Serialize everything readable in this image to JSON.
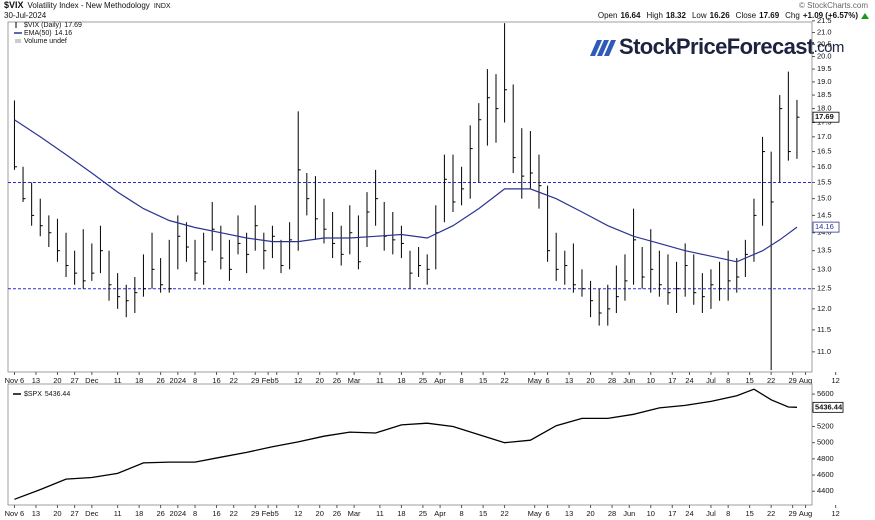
{
  "header": {
    "symbol": "$VIX",
    "name": "Volatility Index - New Methodology",
    "exchange": "INDX",
    "date": "30-Jul-2024",
    "copyright": "© StockCharts.com",
    "quote": [
      {
        "label": "Open",
        "value": 16.64
      },
      {
        "label": "High",
        "value": 18.32
      },
      {
        "label": "Low",
        "value": 16.26
      },
      {
        "label": "Close",
        "value": 17.69
      },
      {
        "label": "Chg",
        "value": "+1.09 (+6.57%)"
      }
    ]
  },
  "logo": {
    "text": "StockPriceForecast",
    "suffix": ".com"
  },
  "chart_data": [
    {
      "type": "hlc",
      "name": "$VIX (Daily)",
      "last": 17.69,
      "color": "#000000",
      "log": true,
      "ylim": [
        10.56,
        21.8
      ],
      "yticks": [
        {
          "value": 11,
          "label": "11.0"
        },
        {
          "value": 11.5,
          "label": "11.5"
        },
        {
          "value": 12,
          "label": "12.0"
        },
        {
          "value": 12.5,
          "label": "12.5"
        },
        {
          "value": 13,
          "label": "13.0"
        },
        {
          "value": 13.5,
          "label": "13.5"
        },
        {
          "value": 14,
          "label": "14.0"
        },
        {
          "value": 14.5,
          "label": "14.5"
        },
        {
          "value": 15,
          "label": "15.0"
        },
        {
          "value": 15.5,
          "label": "15.5"
        },
        {
          "value": 16,
          "label": "16.0"
        },
        {
          "value": 16.5,
          "label": "16.5"
        },
        {
          "value": 17,
          "label": "17.0"
        },
        {
          "value": 17.5,
          "label": "17.5"
        },
        {
          "value": 18,
          "label": "18.0"
        },
        {
          "value": 18.5,
          "label": "18.5"
        },
        {
          "value": 19,
          "label": "19.0"
        },
        {
          "value": 19.5,
          "label": "19.5"
        },
        {
          "value": 20,
          "label": "20.0"
        },
        {
          "value": 20.5,
          "label": "20.5"
        },
        {
          "value": 21,
          "label": "21.0"
        },
        {
          "value": 21.5,
          "label": "21.5"
        }
      ],
      "xlim": [
        -1.5,
        185.5
      ],
      "xticks": [
        {
          "value": 0,
          "label": "Nov 6"
        },
        {
          "value": 5,
          "label": "13"
        },
        {
          "value": 10,
          "label": "20"
        },
        {
          "value": 14,
          "label": "27"
        },
        {
          "value": 18,
          "label": "Dec"
        },
        {
          "value": 24,
          "label": "11"
        },
        {
          "value": 29,
          "label": "18"
        },
        {
          "value": 34,
          "label": "26"
        },
        {
          "value": 38,
          "label": "2024"
        },
        {
          "value": 42,
          "label": "8"
        },
        {
          "value": 47,
          "label": "16"
        },
        {
          "value": 51,
          "label": "22"
        },
        {
          "value": 56,
          "label": "29"
        },
        {
          "value": 59,
          "label": "Feb"
        },
        {
          "value": 61,
          "label": "5"
        },
        {
          "value": 66,
          "label": "12"
        },
        {
          "value": 71,
          "label": "20"
        },
        {
          "value": 75,
          "label": "26"
        },
        {
          "value": 79,
          "label": "Mar"
        },
        {
          "value": 85,
          "label": "11"
        },
        {
          "value": 90,
          "label": "18"
        },
        {
          "value": 95,
          "label": "25"
        },
        {
          "value": 99,
          "label": "Apr"
        },
        {
          "value": 104,
          "label": "8"
        },
        {
          "value": 109,
          "label": "15"
        },
        {
          "value": 114,
          "label": "22"
        },
        {
          "value": 121,
          "label": "May"
        },
        {
          "value": 124,
          "label": "6"
        },
        {
          "value": 129,
          "label": "13"
        },
        {
          "value": 134,
          "label": "20"
        },
        {
          "value": 139,
          "label": "28"
        },
        {
          "value": 143,
          "label": "Jun"
        },
        {
          "value": 148,
          "label": "10"
        },
        {
          "value": 153,
          "label": "17"
        },
        {
          "value": 157,
          "label": "24"
        },
        {
          "value": 162,
          "label": "Jul"
        },
        {
          "value": 166,
          "label": "8"
        },
        {
          "value": 171,
          "label": "15"
        },
        {
          "value": 176,
          "label": "22"
        },
        {
          "value": 181,
          "label": "29"
        },
        {
          "value": 184,
          "label": "Aug"
        },
        {
          "value": 191,
          "label": "12"
        }
      ],
      "x": [
        0,
        2,
        4,
        6,
        8,
        10,
        12,
        14,
        16,
        18,
        20,
        22,
        24,
        26,
        28,
        30,
        32,
        34,
        36,
        38,
        40,
        42,
        44,
        46,
        48,
        50,
        52,
        54,
        56,
        58,
        60,
        62,
        64,
        66,
        68,
        70,
        72,
        74,
        76,
        78,
        80,
        82,
        84,
        86,
        88,
        90,
        92,
        94,
        96,
        98,
        100,
        102,
        104,
        106,
        108,
        110,
        112,
        114,
        116,
        118,
        120,
        122,
        124,
        126,
        128,
        130,
        132,
        134,
        136,
        138,
        140,
        142,
        144,
        146,
        148,
        150,
        152,
        154,
        156,
        158,
        160,
        162,
        164,
        166,
        168,
        170,
        172,
        174,
        176,
        178,
        180,
        182
      ],
      "high": [
        18.3,
        16.0,
        15.5,
        15.0,
        14.5,
        14.4,
        14.0,
        13.5,
        14.1,
        13.7,
        14.2,
        13.5,
        12.9,
        12.6,
        12.8,
        13.4,
        14.0,
        13.3,
        13.8,
        14.5,
        14.3,
        13.8,
        14.0,
        14.9,
        14.2,
        13.8,
        14.5,
        14.0,
        14.8,
        14.0,
        14.2,
        13.8,
        14.3,
        17.9,
        15.8,
        15.7,
        15.0,
        14.6,
        14.2,
        14.8,
        14.5,
        15.2,
        15.9,
        14.9,
        14.6,
        14.2,
        13.5,
        13.6,
        13.4,
        14.8,
        16.4,
        16.4,
        16.0,
        17.4,
        18.2,
        19.5,
        19.3,
        21.4,
        18.9,
        17.3,
        17.2,
        16.4,
        15.4,
        14.0,
        13.5,
        13.7,
        13.0,
        12.7,
        12.5,
        12.6,
        13.1,
        13.4,
        14.7,
        13.6,
        14.1,
        13.5,
        13.4,
        13.2,
        13.7,
        13.4,
        12.9,
        13.0,
        13.2,
        13.5,
        13.3,
        13.8,
        15.0,
        17.0,
        16.5,
        18.5,
        19.4,
        18.32
      ],
      "low": [
        15.9,
        14.9,
        14.2,
        13.9,
        13.6,
        13.2,
        12.8,
        12.6,
        12.5,
        12.7,
        12.9,
        12.2,
        12.0,
        11.8,
        11.9,
        12.3,
        12.5,
        12.4,
        12.4,
        13.0,
        13.2,
        12.7,
        12.6,
        13.5,
        13.0,
        12.7,
        13.4,
        12.9,
        13.5,
        13.0,
        13.3,
        12.9,
        13.0,
        13.5,
        14.5,
        13.8,
        13.7,
        13.3,
        13.1,
        13.4,
        13.0,
        13.6,
        14.2,
        13.5,
        13.4,
        13.3,
        12.5,
        12.8,
        12.6,
        13.0,
        14.3,
        14.6,
        14.8,
        15.0,
        15.5,
        16.7,
        16.8,
        17.5,
        15.8,
        15.0,
        15.3,
        14.7,
        13.2,
        12.7,
        12.6,
        12.4,
        12.3,
        11.8,
        11.6,
        11.6,
        11.9,
        12.2,
        12.6,
        12.5,
        12.4,
        12.3,
        12.1,
        11.9,
        12.3,
        12.1,
        11.9,
        12.0,
        12.2,
        12.2,
        12.4,
        12.8,
        13.2,
        14.2,
        10.6,
        15.5,
        16.2,
        16.26
      ],
      "close": [
        16.0,
        15.0,
        14.5,
        14.2,
        14.0,
        13.5,
        13.1,
        12.9,
        12.7,
        12.9,
        13.5,
        12.6,
        12.3,
        12.2,
        12.4,
        12.5,
        13.0,
        12.6,
        12.5,
        13.9,
        13.6,
        12.9,
        13.2,
        14.1,
        13.3,
        13.0,
        13.7,
        13.4,
        14.2,
        13.5,
        13.9,
        13.1,
        13.8,
        15.9,
        15.0,
        14.4,
        14.1,
        13.7,
        13.4,
        14.0,
        13.2,
        14.6,
        15.0,
        13.9,
        13.8,
        13.7,
        12.9,
        13.1,
        13.0,
        14.0,
        15.6,
        14.9,
        15.3,
        16.6,
        17.6,
        18.4,
        18.0,
        18.7,
        16.3,
        15.7,
        15.8,
        15.4,
        13.5,
        13.0,
        13.1,
        12.6,
        12.5,
        12.2,
        11.9,
        12.0,
        12.3,
        12.7,
        13.8,
        12.8,
        13.0,
        12.6,
        12.4,
        12.5,
        13.1,
        12.4,
        12.3,
        12.6,
        12.5,
        12.7,
        12.8,
        13.4,
        14.5,
        16.5,
        14.9,
        18.0,
        16.5,
        17.69
      ],
      "overlays": [
        {
          "name": "EMA(50)",
          "last": 14.16,
          "color": "#2b3590",
          "x": [
            0,
            6,
            12,
            18,
            24,
            30,
            36,
            42,
            48,
            54,
            60,
            66,
            72,
            78,
            84,
            90,
            96,
            102,
            108,
            114,
            120,
            126,
            132,
            138,
            144,
            150,
            156,
            162,
            168,
            174,
            178,
            182
          ],
          "values": [
            17.6,
            17.0,
            16.4,
            15.8,
            15.2,
            14.7,
            14.35,
            14.15,
            14.0,
            13.85,
            13.75,
            13.75,
            13.85,
            13.85,
            13.9,
            13.95,
            13.85,
            14.2,
            14.7,
            15.3,
            15.3,
            15.0,
            14.6,
            14.2,
            13.9,
            13.7,
            13.5,
            13.35,
            13.2,
            13.5,
            13.8,
            14.16
          ]
        }
      ],
      "hlines": [
        15.5,
        12.5
      ],
      "hline_color": "#2b2bd6",
      "volume_label": "Volume undef"
    },
    {
      "type": "line",
      "name": "$SPX",
      "last": 5436.44,
      "color": "#000000",
      "ylim": [
        4230,
        5700
      ],
      "yticks": [
        4400,
        4600,
        4800,
        5000,
        5200,
        5400,
        5600
      ],
      "xlim": [
        -1.5,
        185.5
      ],
      "xticks": [
        {
          "value": 0,
          "label": "Nov 6"
        },
        {
          "value": 5,
          "label": "13"
        },
        {
          "value": 10,
          "label": "20"
        },
        {
          "value": 14,
          "label": "27"
        },
        {
          "value": 18,
          "label": "Dec"
        },
        {
          "value": 24,
          "label": "11"
        },
        {
          "value": 29,
          "label": "18"
        },
        {
          "value": 34,
          "label": "26"
        },
        {
          "value": 38,
          "label": "2024"
        },
        {
          "value": 42,
          "label": "8"
        },
        {
          "value": 47,
          "label": "16"
        },
        {
          "value": 51,
          "label": "22"
        },
        {
          "value": 56,
          "label": "29"
        },
        {
          "value": 59,
          "label": "Feb"
        },
        {
          "value": 61,
          "label": "5"
        },
        {
          "value": 66,
          "label": "12"
        },
        {
          "value": 71,
          "label": "20"
        },
        {
          "value": 75,
          "label": "26"
        },
        {
          "value": 79,
          "label": "Mar"
        },
        {
          "value": 85,
          "label": "11"
        },
        {
          "value": 90,
          "label": "18"
        },
        {
          "value": 95,
          "label": "25"
        },
        {
          "value": 99,
          "label": "Apr"
        },
        {
          "value": 104,
          "label": "8"
        },
        {
          "value": 109,
          "label": "15"
        },
        {
          "value": 114,
          "label": "22"
        },
        {
          "value": 121,
          "label": "May"
        },
        {
          "value": 124,
          "label": "6"
        },
        {
          "value": 129,
          "label": "13"
        },
        {
          "value": 134,
          "label": "20"
        },
        {
          "value": 139,
          "label": "28"
        },
        {
          "value": 143,
          "label": "Jun"
        },
        {
          "value": 148,
          "label": "10"
        },
        {
          "value": 153,
          "label": "17"
        },
        {
          "value": 157,
          "label": "24"
        },
        {
          "value": 162,
          "label": "Jul"
        },
        {
          "value": 166,
          "label": "8"
        },
        {
          "value": 171,
          "label": "15"
        },
        {
          "value": 176,
          "label": "22"
        },
        {
          "value": 181,
          "label": "29"
        },
        {
          "value": 184,
          "label": "Aug"
        },
        {
          "value": 191,
          "label": "12"
        }
      ],
      "x": [
        0,
        6,
        12,
        18,
        24,
        30,
        36,
        42,
        48,
        54,
        60,
        66,
        72,
        78,
        84,
        90,
        96,
        102,
        108,
        114,
        120,
        126,
        132,
        138,
        144,
        150,
        156,
        162,
        168,
        172,
        176,
        180,
        182
      ],
      "values": [
        4300,
        4420,
        4550,
        4570,
        4620,
        4750,
        4760,
        4760,
        4820,
        4880,
        4950,
        5010,
        5080,
        5130,
        5120,
        5220,
        5240,
        5200,
        5100,
        5000,
        5030,
        5210,
        5300,
        5300,
        5350,
        5430,
        5460,
        5510,
        5580,
        5660,
        5530,
        5440,
        5436.44
      ]
    }
  ]
}
